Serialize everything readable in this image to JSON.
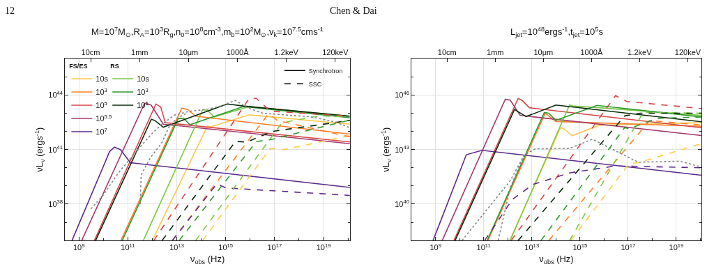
{
  "chart_data": [
    {
      "type": "line",
      "title": "M=10$^{7}$M$_{⊙}$,R$_{A}$=10$^{3}$R$_{g}$,n$_{0}$=10$^{8}$cm$^{-3}$,m$_{b}$=10$^{2}$M$_{⊙}$,v$_{k}$=10$^{7.5}$cms$^{-1}$",
      "xlabel": "ν$_{obs}$ (Hz)",
      "ylabel": "νL$_{ν}$ (ergs$^{-1}$)",
      "legend_title": [
        "FS/ES",
        "RS"
      ],
      "annotations": [
        "12",
        "Chen & Dai",
        "Synchrotron",
        "SSC",
        "10cm",
        "1mm",
        "10μm",
        "1000Å",
        "1.2keV",
        "120keV"
      ],
      "log": "xy",
      "grid": true,
      "legend": "top left",
      "xlim": [
        270000000.0,
        1.2e+20
      ],
      "ylim": [
        1e+36,
        1e+46
      ],
      "xticks": [
        {
          "value": 1000000000.0,
          "label": "10$^{9}$"
        },
        {
          "value": 10000000000.0,
          "label": null
        },
        {
          "value": 100000000000.0,
          "label": "10$^{11}$"
        },
        {
          "value": 1000000000000.0,
          "label": null
        },
        {
          "value": 10000000000000.0,
          "label": "10$^{13}$"
        },
        {
          "value": 100000000000000.0,
          "label": null
        },
        {
          "value": 1000000000000000.0,
          "label": "10$^{15}$"
        },
        {
          "value": 1e+16,
          "label": null
        },
        {
          "value": 1e+17,
          "label": "10$^{17}$"
        },
        {
          "value": 1e+18,
          "label": null
        },
        {
          "value": 1e+19,
          "label": "10$^{19}$"
        },
        {
          "value": 1e+20,
          "label": null
        }
      ],
      "yticks": [
        {
          "value": 1e+37,
          "label": null
        },
        {
          "value": 1e+38,
          "label": "10$^{38}$"
        },
        {
          "value": 1e+39,
          "label": null
        },
        {
          "value": 1e+40,
          "label": null
        },
        {
          "value": 1e+41,
          "label": "10$^{41}$"
        },
        {
          "value": 1e+42,
          "label": null
        },
        {
          "value": 1e+43,
          "label": null
        },
        {
          "value": 1e+44,
          "label": "10$^{44}$"
        },
        {
          "value": 1e+45,
          "label": null
        }
      ],
      "series": [
        {
          "name": "10s",
          "color": "#ffc94d",
          "line_style": "solid",
          "x": [
            1000000000000.0,
            180000000000000.0,
            250000000000000.0,
            9100000000000000.0,
            1.2e+20
          ],
          "values": [
            1e+36,
            2e+42,
            1.8e+42,
            8.1e+42,
            2.5e+42
          ]
        },
        {
          "name": "10$^{3}$",
          "color": "#ff7f27",
          "line_style": "solid",
          "x": [
            52000000000.0,
            16000000000000.0,
            28000000000000.0,
            59000000000000.0,
            1.2e+20
          ],
          "values": [
            1e+36,
            1.9e+43,
            1.6e+43,
            6.8e+42,
            7.1e+41
          ]
        },
        {
          "name": "10$^{5}$",
          "color": "#d64545",
          "line_style": "solid",
          "x": [
            4300000000.0,
            1400000000000.0,
            2200000000000.0,
            3400000000000.0,
            1.2e+20
          ],
          "values": [
            1e+36,
            3.2e+43,
            2.2e+43,
            3e+42,
            2.6e+41
          ]
        },
        {
          "name": "10$^{5.5}$",
          "color": "#a33a6a",
          "line_style": "solid",
          "x": [
            1300000000.0,
            480000000000.0,
            890000000000.0,
            2800000000000.0,
            1.2e+20
          ],
          "values": [
            1e+36,
            3.5e+43,
            2.8e+43,
            2.5e+42,
            2.1e+41
          ]
        },
        {
          "name": "10$^{7}$",
          "color": "#5e2a8c",
          "line_style": "solid",
          "x": [
            520000000.0,
            18000000000.0,
            28000000000.0,
            50000000000.0,
            126000000000.0,
            1.2e+20
          ],
          "values": [
            1e+36,
            7.9e+40,
            1.35e+41,
            1e+41,
            1.9e+40,
            8.3e+38
          ]
        },
        {
          "name": "10s",
          "color": "#7ac943",
          "line_style": "solid",
          "x": [
            430000000000.0,
            115000000000000.0,
            180000000000000.0,
            340000000000000.0,
            9100000000000000.0,
            1.2e+20
          ],
          "values": [
            1e+36,
            1.6e+43,
            1.4e+43,
            6.2e+42,
            2.3e+43,
            6.8e+42
          ]
        },
        {
          "name": "10$^{3}$",
          "color": "#2f9a2f",
          "line_style": "solid",
          "x": [
            59000000000.0,
            11500000000000.0,
            20000000000000.0,
            34000000000000.0,
            5200000000000000.0,
            1.2e+20
          ],
          "values": [
            1e+36,
            5.2e+42,
            5e+42,
            2.3e+42,
            2.3e+43,
            5.6e+42
          ]
        },
        {
          "name": "10$^{5}$",
          "color": "#0a2a0a",
          "line_style": "solid",
          "x": [
            4800000000.0,
            910000000000.0,
            1260000000000.0,
            2800000000000.0,
            1150000000000000.0,
            5200000000000000.0,
            1.2e+20
          ],
          "values": [
            1e+36,
            4.6e+42,
            4e+42,
            1.7e+42,
            3.2e+43,
            2.5e+43,
            6.8e+42
          ]
        },
        {
          "color": "#ffc94d",
          "line_style": "dashed",
          "x": [
            115000000000000.0,
            6.6e+16,
            2.5e+17,
            1.2e+20
          ],
          "values": [
            1e+36,
            1.15e+41,
            1e+41,
            5.9e+41
          ]
        },
        {
          "color": "#ff7f27",
          "line_style": "dashed",
          "x": [
            6600000000000.0,
            5.2e+16,
            6.6e+16,
            1.26e+17,
            1.2e+20
          ],
          "values": [
            1e+36,
            8.1e+42,
            8.5e+42,
            4e+42,
            5e+41
          ]
        },
        {
          "color": "#d64545",
          "line_style": "dashed",
          "x": [
            1150000000000.0,
            9100000000000000.0,
            1.8e+16,
            6.6e+16,
            1.2e+20
          ],
          "values": [
            1e+36,
            6.5e+43,
            6.5e+43,
            1.3e+43,
            6.8e+42
          ]
        },
        {
          "color": "#5e2a8c",
          "line_style": "dashed",
          "x": [
            6600000000000.0,
            430000000000000.0,
            1000000000000000.0,
            1.2e+20
          ],
          "values": [
            1e+36,
            1.3e+39,
            7.8e+38,
            3e+38
          ]
        },
        {
          "color": "#7ac943",
          "line_style": "dashed",
          "x": [
            59000000000000.0,
            2e+17,
            6.6e+18,
            1.2e+20
          ],
          "values": [
            1e+36,
            3e+42,
            7.1e+42,
            6.3e+42
          ]
        },
        {
          "color": "#2f9a2f",
          "line_style": "dashed",
          "x": [
            12600000000000.0,
            1.8e+16,
            5.2e+16,
            1.2e+20
          ],
          "values": [
            1e+36,
            2.8e+41,
            3.2e+41,
            4.2e+42
          ]
        },
        {
          "color": "#0a2a0a",
          "line_style": "dashed",
          "x": [
            2500000000000.0,
            2500000000000000.0,
            7400000000000000.0,
            8.1e+16,
            1.2e+20
          ],
          "values": [
            1e+36,
            2.8e+41,
            2.6e+41,
            1e+42,
            4e+42
          ]
        },
        {
          "color": "#888888",
          "line_style": "dotted",
          "x": [
            3100000000.0,
            10000000000.0,
            40000000000.0,
            126000000000.0,
            400000000000.0,
            1000000000000.0,
            2500000000000.0,
            7900000000000.0,
            32000000000000.0,
            160000000000000.0,
            630000000000000.0,
            2500000000000000.0,
            7900000000000000.0,
            3.2e+16,
            3.2e+17,
            3.2e+18,
            3.2e+19,
            1.2e+20
          ],
          "values": [
            5.5e+37,
            3.2e+38,
            5e+39,
            3.2e+40,
            2e+41,
            7.9e+41,
            2.5e+42,
            7.9e+42,
            1.26e+43,
            1.6e+43,
            2.5e+43,
            5e+43,
            2e+43,
            1e+43,
            7.9e+42,
            6.3e+42,
            3.2e+42,
            1.6e+42
          ]
        },
        {
          "color": "#888888",
          "line_style": "dotted",
          "x": [
            320000000000.0,
            350000000000.0,
            790000000000.0,
            2500000000000.0,
            5000000000000.0,
            10000000000000.0,
            25000000000000.0
          ],
          "values": [
            1e+38,
            4e+39,
            3.2e+40,
            2.5e+41,
            2e+42,
            5e+42,
            1e+43
          ]
        }
      ]
    },
    {
      "type": "line",
      "title": "L$_{jet}$=10$^{48}$ergs$^{-1}$,t$_{jet}$=10$^{5}$s",
      "xlabel": "ν$_{obs}$ (Hz)",
      "ylabel": "νL$_{ν}$ (ergs$^{-1}$)",
      "log": "xy",
      "grid": true,
      "xlim": [
        100000000.0,
        1.1e+20
      ],
      "ylim": [
        1e+38,
        1e+48
      ],
      "xticks": [
        {
          "value": 1000000000.0,
          "label": "10$^{9}$"
        },
        {
          "value": 10000000000.0,
          "label": null
        },
        {
          "value": 100000000000.0,
          "label": "10$^{11}$"
        },
        {
          "value": 1000000000000.0,
          "label": null
        },
        {
          "value": 10000000000000.0,
          "label": "10$^{13}$"
        },
        {
          "value": 100000000000000.0,
          "label": null
        },
        {
          "value": 1000000000000000.0,
          "label": "10$^{15}$"
        },
        {
          "value": 1e+16,
          "label": null
        },
        {
          "value": 1e+17,
          "label": "10$^{17}$"
        },
        {
          "value": 1e+18,
          "label": null
        },
        {
          "value": 1e+19,
          "label": "10$^{19}$"
        },
        {
          "value": 1e+20,
          "label": null
        }
      ],
      "yticks": [
        {
          "value": 1e+39,
          "label": null
        },
        {
          "value": 1e+40,
          "label": "10$^{40}$"
        },
        {
          "value": 1e+41,
          "label": null
        },
        {
          "value": 1e+42,
          "label": null
        },
        {
          "value": 1e+43,
          "label": "10$^{43}$"
        },
        {
          "value": 1e+44,
          "label": null
        },
        {
          "value": 1e+45,
          "label": null
        },
        {
          "value": 1e+46,
          "label": "10$^{46}$"
        },
        {
          "value": 1e+47,
          "label": null
        }
      ],
      "annotations": [
        "10cm",
        "1mm",
        "10μm",
        "1000Å",
        "1.2keV",
        "120keV"
      ],
      "series": [
        {
          "color": "#ffc94d",
          "line_style": "solid",
          "x": [
            1200000000000.0,
            155000000000000.0,
            200000000000000.0,
            470000000000000.0,
            6500000000000000.0,
            1.1e+20
          ],
          "values": [
            1e+38,
            1.55e+44,
            1.5e+44,
            5.8e+43,
            2.2e+44,
            3e+44
          ]
        },
        {
          "color": "#ff7f27",
          "line_style": "solid",
          "x": [
            150000000000.0,
            36000000000000.0,
            100000000000000.0,
            1.1e+20
          ],
          "values": [
            1e+38,
            1e+45,
            3.5e+44,
            1.9e+44
          ]
        },
        {
          "color": "#d64545",
          "line_style": "solid",
          "x": [
            5800000000.0,
            2700000000000.0,
            4000000000000.0,
            7900000000000.0,
            1.1e+20
          ],
          "values": [
            1e+38,
            6.5e+45,
            5e+45,
            2e+45,
            1.6e+44
          ]
        },
        {
          "color": "#a33a6a",
          "line_style": "solid",
          "x": [
            1900000000.0,
            790000000000.0,
            1260000000000.0,
            3300000000000.0,
            1.1e+20
          ],
          "values": [
            1e+38,
            5.9e+45,
            5.2e+45,
            7.6e+44,
            5.9e+43
          ]
        },
        {
          "color": "#5e2a8c",
          "line_style": "solid",
          "x": [
            790000000.0,
            19000000000.0,
            85000000000.0,
            1.1e+20
          ],
          "values": [
            1e+38,
            5.2e+42,
            9.1e+42,
            3.9e+41
          ]
        },
        {
          "color": "#7ac943",
          "line_style": "solid",
          "x": [
            1260000000000.0,
            370000000000000.0,
            500000000000000.0,
            6300000000000000.0,
            1.1e+20
          ],
          "values": [
            1e+38,
            2.9e+45,
            2.5e+45,
            2e+45,
            7.6e+44
          ]
        },
        {
          "color": "#2f9a2f",
          "line_style": "solid",
          "x": [
            140000000000.0,
            33000000000000.0,
            50000000000000.0,
            100000000000000.0,
            5100000000000000.0,
            1.1e+20
          ],
          "values": [
            1e+38,
            1.1e+45,
            1e+45,
            4e+44,
            2.7e+45,
            6.2e+44
          ]
        },
        {
          "color": "#0a2a0a",
          "line_style": "solid",
          "x": [
            6500000000.0,
            1900000000000.0,
            5800000000000.0,
            100000000000000.0,
            1.1e+20
          ],
          "values": [
            1e+38,
            1.6e+45,
            6.5e+44,
            2.8e+45,
            3.4e+44
          ]
        },
        {
          "color": "#ffc94d",
          "line_style": "dashed",
          "x": [
            420000000000000.0,
            1.1e+17,
            2.7e+17,
            1.1e+20
          ],
          "values": [
            1e+38,
            1.7e+42,
            1.9e+42,
            2.1e+43
          ]
        },
        {
          "color": "#ff7f27",
          "line_style": "dashed",
          "x": [
            51000000000000.0,
            7.9e+17,
            1.1e+20
          ],
          "values": [
            1e+38,
            4e+44,
            2.2e+44
          ]
        },
        {
          "color": "#d64545",
          "line_style": "dashed",
          "x": [
            1400000000000.0,
            3e+16,
            8.9e+16,
            1.1e+20
          ],
          "values": [
            1e+38,
            9.3e+45,
            4.4e+45,
            1.8e+45
          ]
        },
        {
          "color": "#5e2a8c",
          "line_style": "dashed",
          "x": [
            110000000000.0,
            1550000000000.0,
            11000000000000.0,
            370000000000000.0,
            3e+16,
            1.1e+20
          ],
          "values": [
            1e+38,
            1.8e+40,
            1.2e+41,
            5.2e+41,
            1.26e+42,
            1e+42
          ]
        },
        {
          "color": "#7ac943",
          "line_style": "dashed",
          "x": [
            370000000000000.0,
            4.2e+17,
            1.1e+20
          ],
          "values": [
            1e+38,
            1.1e+45,
            1e+45
          ]
        },
        {
          "color": "#2f9a2f",
          "line_style": "dashed",
          "x": [
            24000000000000.0,
            7.2e+16,
            1.1e+17,
            1.55e+18,
            1.1e+20
          ],
          "values": [
            1e+38,
            1.6e+44,
            1.4e+44,
            5.2e+44,
            6.2e+44
          ]
        },
        {
          "color": "#0a2a0a",
          "line_style": "dashed",
          "x": [
            2700000000000.0,
            7.2e+16,
            3.2e+17,
            1.1e+20
          ],
          "values": [
            1e+38,
            7.1e+44,
            1e+45,
            1e+45
          ]
        },
        {
          "color": "#888888",
          "line_style": "dotted",
          "x": [
            400000000000.0,
            1260000000000.0,
            4700000000000.0,
            14000000000000.0,
            370000000000000.0,
            3300000000000000.0,
            3e+16,
            2.7e+17,
            1.4e+19,
            1.1e+20
          ],
          "values": [
            1e+38,
            7.9e+40,
            4.8e+42,
            1.1e+43,
            1.15e+43,
            3.7e+43,
            8.5e+42,
            2e+42,
            2.3e+42,
            1.1e+42
          ]
        },
        {
          "color": "#888888",
          "line_style": "dotted",
          "x": [
            12600000000.0,
            1260000000000.0,
            4700000000000.0
          ],
          "values": [
            1e+38,
            1.9e+41,
            4.8e+42
          ]
        }
      ]
    }
  ]
}
